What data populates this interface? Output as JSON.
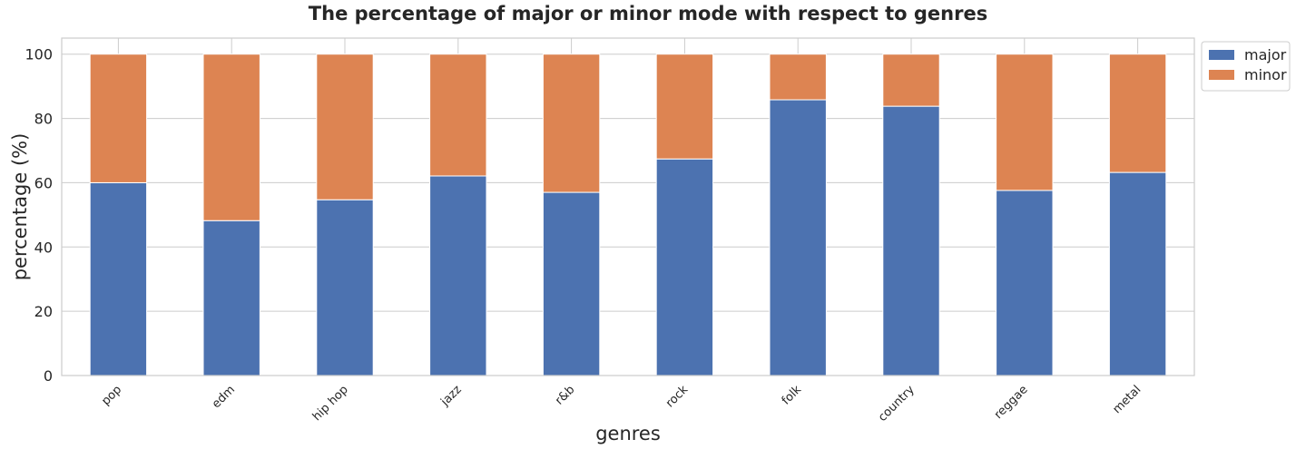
{
  "chart_data": {
    "type": "bar",
    "stacked": true,
    "title": "The percentage of major or minor mode with respect to genres",
    "xlabel": "genres",
    "ylabel": "percentage (%)",
    "categories": [
      "pop",
      "edm",
      "hip hop",
      "jazz",
      "r&b",
      "rock",
      "folk",
      "country",
      "reggae",
      "metal"
    ],
    "series": [
      {
        "name": "major",
        "color": "#4c72b0",
        "values": [
          60.0,
          48.2,
          54.7,
          62.1,
          57.0,
          67.4,
          85.8,
          83.8,
          57.6,
          63.2
        ]
      },
      {
        "name": "minor",
        "color": "#dd8452",
        "values": [
          40.0,
          51.8,
          45.3,
          37.9,
          43.0,
          32.6,
          14.2,
          16.2,
          42.4,
          36.8
        ]
      }
    ],
    "ylim": [
      0,
      105
    ],
    "yticks": [
      0,
      20,
      40,
      60,
      80,
      100
    ],
    "grid": true,
    "legend_position": "outside-top-right"
  }
}
